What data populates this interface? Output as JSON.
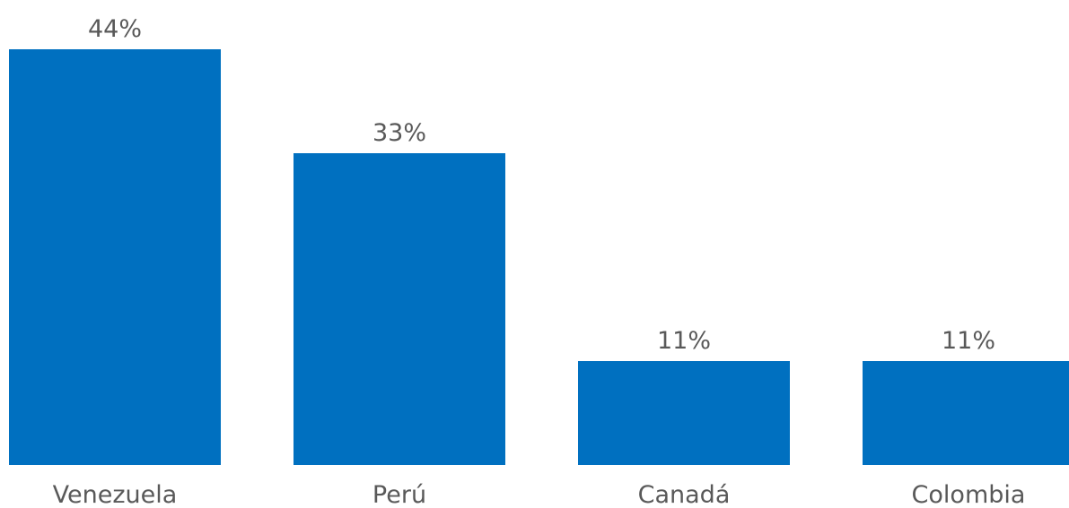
{
  "chart_data": {
    "type": "bar",
    "categories": [
      "Venezuela",
      "Perú",
      "Canadá",
      "Colombia"
    ],
    "values": [
      44,
      33,
      11,
      11
    ],
    "value_labels": [
      "44%",
      "33%",
      "11%",
      "11%"
    ],
    "unit": "%",
    "title": "",
    "xlabel": "",
    "ylabel": "",
    "ylim": [
      0,
      44
    ],
    "grid": false,
    "legend": "none",
    "colors": {
      "bar": "#0070C0",
      "label_text": "#595959"
    }
  }
}
